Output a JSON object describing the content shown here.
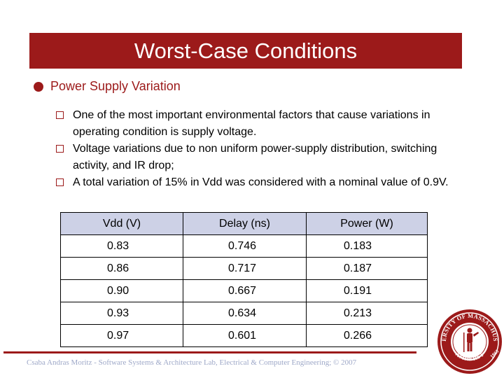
{
  "slide": {
    "title": "Worst-Case Conditions",
    "main_bullet": "Power Supply Variation",
    "sub_bullets": [
      "One of the most important environmental factors that cause variations in operating condition is supply voltage.",
      "Voltage variations due to non uniform power-supply distribution, switching activity, and IR drop;",
      "A total variation of 15% in Vdd was considered with a nominal value of 0.9V."
    ]
  },
  "table": {
    "headers": [
      "Vdd (V)",
      "Delay (ns)",
      "Power (W)"
    ],
    "rows": [
      [
        "0.83",
        "0.746",
        "0.183"
      ],
      [
        "0.86",
        "0.717",
        "0.187"
      ],
      [
        "0.90",
        "0.667",
        "0.191"
      ],
      [
        "0.93",
        "0.634",
        "0.213"
      ],
      [
        "0.97",
        "0.601",
        "0.266"
      ]
    ]
  },
  "footer": {
    "text": "Csaba Andras Moritz - Software Systems & Architecture Lab, Electrical & Computer Engineering; © 2007"
  },
  "seal": {
    "icon": "university-seal-icon",
    "top_text": "UNIVERSITY OF MASSACHUSETTS",
    "bottom_text": "AMHERST",
    "year": "1863"
  },
  "colors": {
    "accent": "#9c1a1a",
    "table_header": "#cdd1e6",
    "footer_text": "#9ea8c8"
  }
}
